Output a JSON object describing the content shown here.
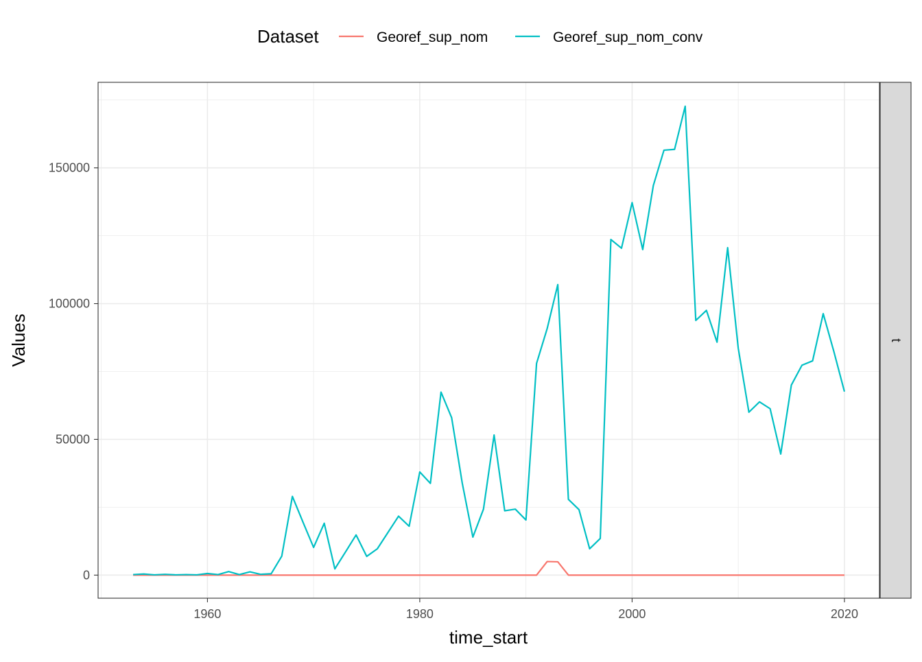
{
  "chart_data": {
    "type": "line",
    "xlabel": "time_start",
    "ylabel": "Values",
    "legend_title": "Dataset",
    "legend_position": "top",
    "facet_label": "t",
    "grid": true,
    "xlim": [
      1949.7,
      2023.3
    ],
    "ylim": [
      -8500,
      181500
    ],
    "x_ticks": [
      1960,
      1980,
      2000,
      2020
    ],
    "x_tick_labels": [
      "1960",
      "1980",
      "2000",
      "2020"
    ],
    "y_ticks": [
      0,
      50000,
      100000,
      150000
    ],
    "y_tick_labels": [
      "0",
      "50000",
      "100000",
      "150000"
    ],
    "series": [
      {
        "name": "Georef_sup_nom",
        "color": "#F8766D",
        "x": [
          1953,
          1954,
          1955,
          1956,
          1957,
          1958,
          1959,
          1960,
          1961,
          1962,
          1963,
          1964,
          1965,
          1966,
          1967,
          1968,
          1969,
          1970,
          1971,
          1972,
          1973,
          1974,
          1975,
          1976,
          1977,
          1978,
          1979,
          1980,
          1981,
          1982,
          1983,
          1984,
          1985,
          1986,
          1987,
          1988,
          1989,
          1990,
          1991,
          1992,
          1993,
          1994,
          1995,
          1996,
          1997,
          1998,
          1999,
          2000,
          2001,
          2002,
          2003,
          2004,
          2005,
          2006,
          2007,
          2008,
          2009,
          2010,
          2011,
          2012,
          2013,
          2014,
          2015,
          2016,
          2017,
          2018,
          2019,
          2020
        ],
        "y": [
          0,
          0,
          0,
          0,
          0,
          0,
          0,
          0,
          0,
          0,
          0,
          0,
          0,
          0,
          0,
          0,
          0,
          0,
          0,
          0,
          0,
          0,
          0,
          0,
          0,
          0,
          0,
          0,
          0,
          0,
          0,
          0,
          0,
          0,
          0,
          0,
          0,
          0,
          0,
          5000,
          4900,
          0,
          0,
          0,
          0,
          0,
          0,
          0,
          0,
          0,
          0,
          0,
          0,
          0,
          0,
          0,
          0,
          0,
          0,
          0,
          0,
          0,
          0,
          0,
          0,
          0,
          0,
          0
        ]
      },
      {
        "name": "Georef_sup_nom_conv",
        "color": "#00BFC4",
        "x": [
          1953,
          1954,
          1955,
          1956,
          1957,
          1958,
          1959,
          1960,
          1961,
          1962,
          1963,
          1964,
          1965,
          1966,
          1967,
          1968,
          1969,
          1970,
          1971,
          1972,
          1973,
          1974,
          1975,
          1976,
          1977,
          1978,
          1979,
          1980,
          1981,
          1982,
          1983,
          1984,
          1985,
          1986,
          1987,
          1988,
          1989,
          1990,
          1991,
          1992,
          1993,
          1994,
          1995,
          1996,
          1997,
          1998,
          1999,
          2000,
          2001,
          2002,
          2003,
          2004,
          2005,
          2006,
          2007,
          2008,
          2009,
          2010,
          2011,
          2012,
          2013,
          2014,
          2015,
          2016,
          2017,
          2018,
          2019,
          2020
        ],
        "y": [
          200,
          400,
          100,
          300,
          100,
          200,
          100,
          600,
          200,
          1300,
          200,
          1200,
          300,
          500,
          7000,
          29000,
          19500,
          10200,
          19100,
          2300,
          8500,
          14800,
          6900,
          9700,
          15700,
          21700,
          18000,
          38000,
          33800,
          67400,
          58000,
          33900,
          14000,
          24300,
          51600,
          23700,
          24300,
          20300,
          78000,
          90800,
          107000,
          27900,
          24100,
          9700,
          13500,
          123600,
          120400,
          137200,
          119900,
          143500,
          156500,
          156800,
          172700,
          93800,
          97500,
          85800,
          120600,
          83500,
          60000,
          63800,
          61300,
          44600,
          70000,
          77300,
          78900,
          96300,
          82400,
          67600
        ]
      }
    ]
  }
}
